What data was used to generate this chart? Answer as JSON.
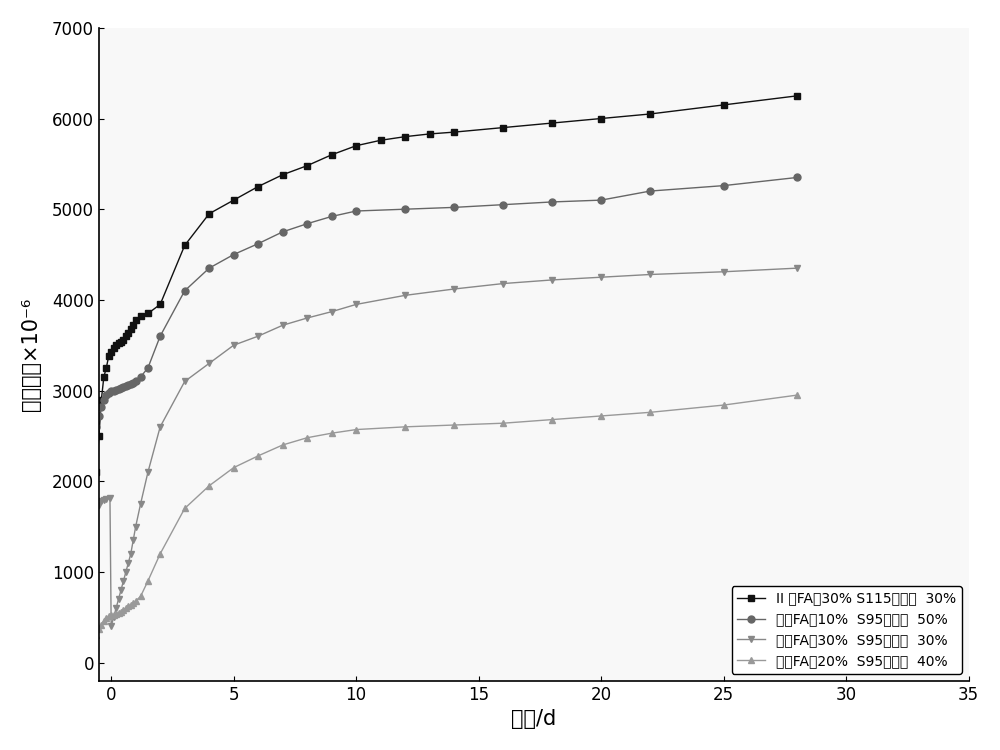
{
  "title": "",
  "xlabel": "龄期/d",
  "ylabel": "收缩值／×10⁻⁶",
  "xlim": [
    -0.5,
    35
  ],
  "ylim": [
    -200,
    7000
  ],
  "yticks": [
    0,
    1000,
    2000,
    3000,
    4000,
    5000,
    6000,
    7000
  ],
  "xticks": [
    0,
    5,
    10,
    15,
    20,
    25,
    30,
    35
  ],
  "background_color": "#ffffff",
  "series": [
    {
      "label": "II 级FA：30% S115矿渣：  30%",
      "color": "#111111",
      "marker": "s",
      "x": [
        -0.7,
        -0.6,
        -0.5,
        -0.4,
        -0.3,
        -0.2,
        -0.1,
        0.0,
        0.1,
        0.2,
        0.3,
        0.4,
        0.5,
        0.6,
        0.7,
        0.8,
        0.9,
        1.0,
        1.2,
        1.5,
        2.0,
        3.0,
        4.0,
        5.0,
        6.0,
        7.0,
        8.0,
        9.0,
        10.0,
        11.0,
        12.0,
        13.0,
        14.0,
        16.0,
        18.0,
        20.0,
        22.0,
        25.0,
        28.0
      ],
      "y": [
        1850,
        2100,
        2500,
        2900,
        3150,
        3250,
        3380,
        3430,
        3470,
        3500,
        3520,
        3540,
        3560,
        3600,
        3640,
        3680,
        3720,
        3780,
        3820,
        3850,
        3950,
        4600,
        4950,
        5100,
        5250,
        5380,
        5480,
        5600,
        5700,
        5760,
        5800,
        5830,
        5850,
        5900,
        5950,
        6000,
        6050,
        6150,
        6250
      ]
    },
    {
      "label": "超细FA：10%  S95矿渣：  50%",
      "color": "#666666",
      "marker": "o",
      "x": [
        -0.7,
        -0.6,
        -0.5,
        -0.4,
        -0.3,
        -0.2,
        -0.1,
        0.0,
        0.1,
        0.2,
        0.3,
        0.4,
        0.5,
        0.6,
        0.7,
        0.8,
        0.9,
        1.0,
        1.2,
        1.5,
        2.0,
        3.0,
        4.0,
        5.0,
        6.0,
        7.0,
        8.0,
        9.0,
        10.0,
        12.0,
        14.0,
        16.0,
        18.0,
        20.0,
        22.0,
        25.0,
        28.0
      ],
      "y": [
        2450,
        2600,
        2720,
        2820,
        2900,
        2950,
        2970,
        2990,
        3000,
        3010,
        3020,
        3030,
        3040,
        3050,
        3060,
        3070,
        3080,
        3100,
        3150,
        3250,
        3600,
        4100,
        4350,
        4500,
        4620,
        4750,
        4840,
        4920,
        4980,
        5000,
        5020,
        5050,
        5080,
        5100,
        5200,
        5260,
        5350
      ]
    },
    {
      "label": "超细FA：30%  S95矿渣：  30%",
      "color": "#888888",
      "marker": "v",
      "x": [
        -0.7,
        -0.6,
        -0.5,
        -0.4,
        -0.3,
        -0.2,
        -0.05,
        0.0,
        0.1,
        0.2,
        0.3,
        0.4,
        0.5,
        0.6,
        0.7,
        0.8,
        0.9,
        1.0,
        1.2,
        1.5,
        2.0,
        3.0,
        4.0,
        5.0,
        6.0,
        7.0,
        8.0,
        9.0,
        10.0,
        12.0,
        14.0,
        16.0,
        18.0,
        20.0,
        22.0,
        25.0,
        28.0
      ],
      "y": [
        1600,
        1680,
        1740,
        1780,
        1790,
        1800,
        1810,
        400,
        500,
        600,
        700,
        800,
        900,
        1000,
        1100,
        1200,
        1350,
        1500,
        1750,
        2100,
        2600,
        3100,
        3300,
        3500,
        3600,
        3720,
        3800,
        3870,
        3950,
        4050,
        4120,
        4180,
        4220,
        4250,
        4280,
        4310,
        4350
      ]
    },
    {
      "label": "超细FA：20%  S95矿渣：  40%",
      "color": "#999999",
      "marker": "^",
      "x": [
        -0.7,
        -0.6,
        -0.5,
        -0.4,
        -0.3,
        -0.2,
        -0.1,
        0.0,
        0.1,
        0.2,
        0.3,
        0.4,
        0.5,
        0.6,
        0.7,
        0.8,
        0.9,
        1.0,
        1.2,
        1.5,
        2.0,
        3.0,
        4.0,
        5.0,
        6.0,
        7.0,
        8.0,
        9.0,
        10.0,
        12.0,
        14.0,
        16.0,
        18.0,
        20.0,
        22.0,
        25.0,
        28.0
      ],
      "y": [
        250,
        310,
        370,
        420,
        460,
        490,
        510,
        520,
        530,
        540,
        550,
        560,
        580,
        600,
        620,
        640,
        660,
        680,
        730,
        900,
        1200,
        1700,
        1950,
        2150,
        2280,
        2400,
        2480,
        2530,
        2570,
        2600,
        2620,
        2640,
        2680,
        2720,
        2760,
        2840,
        2950
      ]
    }
  ]
}
